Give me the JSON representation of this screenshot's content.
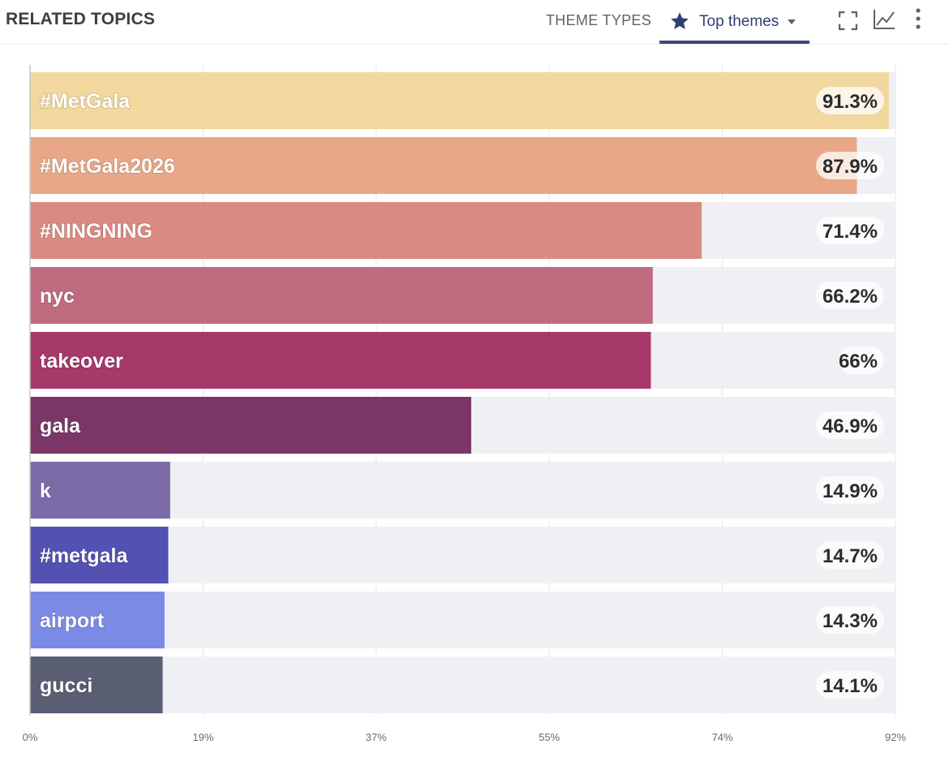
{
  "header": {
    "title": "RELATED TOPICS",
    "tab_theme_types": "THEME TYPES",
    "tab_top_themes": "Top themes",
    "icons": [
      "star-icon",
      "dropdown-caret-icon",
      "fullscreen-icon",
      "line-chart-icon",
      "more-vert-icon"
    ]
  },
  "colors": {
    "accent": "#3b4a78",
    "track": "#eff0f3"
  },
  "chart_data": {
    "type": "bar",
    "orientation": "horizontal",
    "title": "",
    "xlabel": "",
    "ylabel": "",
    "xlim": [
      0,
      92
    ],
    "x_ticks": [
      "0%",
      "19%",
      "37%",
      "55%",
      "74%",
      "92%"
    ],
    "x_tick_values": [
      0,
      18.4,
      36.8,
      55.2,
      73.6,
      92
    ],
    "grid": true,
    "categories": [
      "#MetGala",
      "#MetGala2026",
      "#NINGNING",
      "nyc",
      "takeover",
      "gala",
      "k",
      "#metgala",
      "airport",
      "gucci"
    ],
    "values": [
      91.3,
      87.9,
      71.4,
      66.2,
      66,
      46.9,
      14.9,
      14.7,
      14.3,
      14.1
    ],
    "value_labels": [
      "91.3%",
      "87.9%",
      "71.4%",
      "66.2%",
      "66%",
      "46.9%",
      "14.9%",
      "14.7%",
      "14.3%",
      "14.1%"
    ],
    "bar_colors": [
      "#f2d79e",
      "#e8a888",
      "#db8a82",
      "#bf6b80",
      "#a6396a",
      "#7b3667",
      "#7b6ba6",
      "#5352b3",
      "#7b8ae4",
      "#5a5f73"
    ]
  }
}
